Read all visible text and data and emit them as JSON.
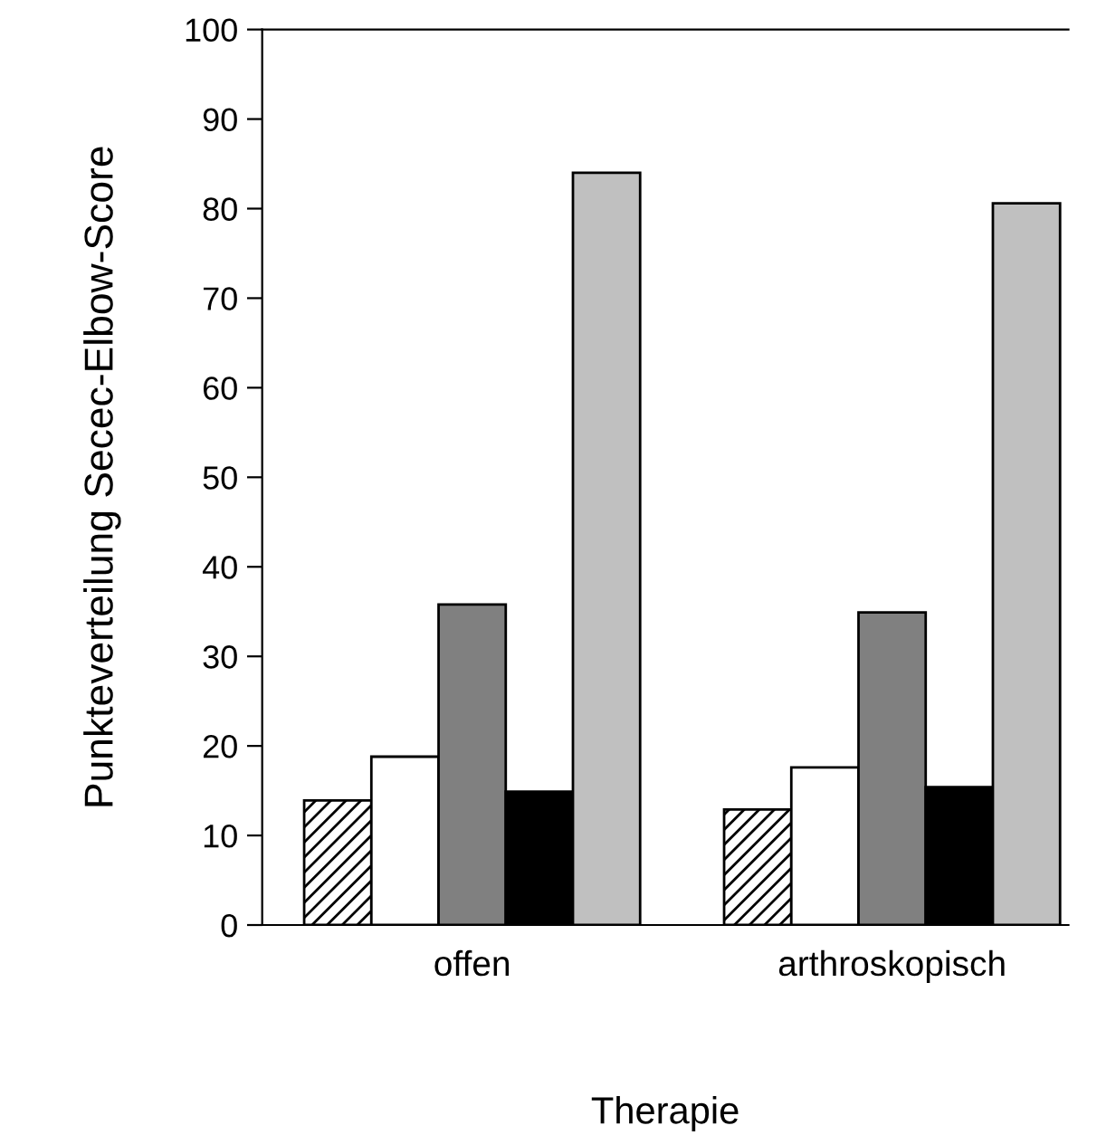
{
  "chart_data": {
    "type": "bar",
    "xlabel": "Therapie",
    "ylabel": "Punkteverteilung Secec-Elbow-Score",
    "categories": [
      "offen",
      "arthroskopisch"
    ],
    "series": [
      {
        "color": "#000000",
        "values": [
          13.9,
          12.9
        ]
      },
      {
        "color": "#ffffff",
        "values": [
          18.8,
          17.6
        ]
      },
      {
        "color": "#808080",
        "values": [
          35.8,
          34.9
        ]
      },
      {
        "color": "#000000",
        "values": [
          14.9,
          15.4
        ]
      },
      {
        "color": "#c0c0c0",
        "values": [
          84.0,
          80.6
        ]
      }
    ],
    "ylim": [
      0,
      100
    ],
    "yticks": [
      0,
      10,
      20,
      30,
      40,
      50,
      60,
      70,
      80,
      90,
      100
    ],
    "grid": false,
    "legend": false
  }
}
